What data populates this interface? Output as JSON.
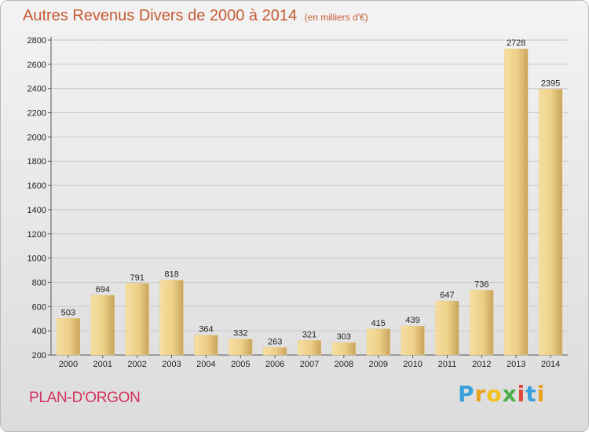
{
  "header": {
    "title": "Autres Revenus Divers de 2000 à 2014",
    "unit": "(en milliers d'€)"
  },
  "footer": {
    "city": "PLAN-D'ORGON",
    "brand_letters": [
      "P",
      "r",
      "o",
      "x",
      "i",
      "t",
      "i"
    ],
    "brand_colors": [
      "#3aa0de",
      "#e8a11d",
      "#f4c21f",
      "#4bb048",
      "#e0483a",
      "#3aa0de",
      "#e8a11d"
    ]
  },
  "colors": {
    "bar_light": "#f6dfa3",
    "bar_dark": "#c9a35c",
    "grid": "#c8c8c8",
    "title": "#c55a33",
    "city": "#d2325e"
  },
  "chart_data": {
    "type": "bar",
    "title": "Autres Revenus Divers de 2000 à 2014",
    "subtitle": "(en milliers d'€)",
    "categories": [
      "2000",
      "2001",
      "2002",
      "2003",
      "2004",
      "2005",
      "2006",
      "2007",
      "2008",
      "2009",
      "2010",
      "2011",
      "2012",
      "2013",
      "2014"
    ],
    "values": [
      503,
      694,
      791,
      818,
      364,
      332,
      263,
      321,
      303,
      415,
      439,
      647,
      736,
      2728,
      2395
    ],
    "ylim": [
      200,
      2800
    ],
    "yticks": [
      200,
      400,
      600,
      800,
      1000,
      1200,
      1400,
      1600,
      1800,
      2000,
      2200,
      2400,
      2600,
      2800
    ],
    "grid": true,
    "legend": "none"
  }
}
